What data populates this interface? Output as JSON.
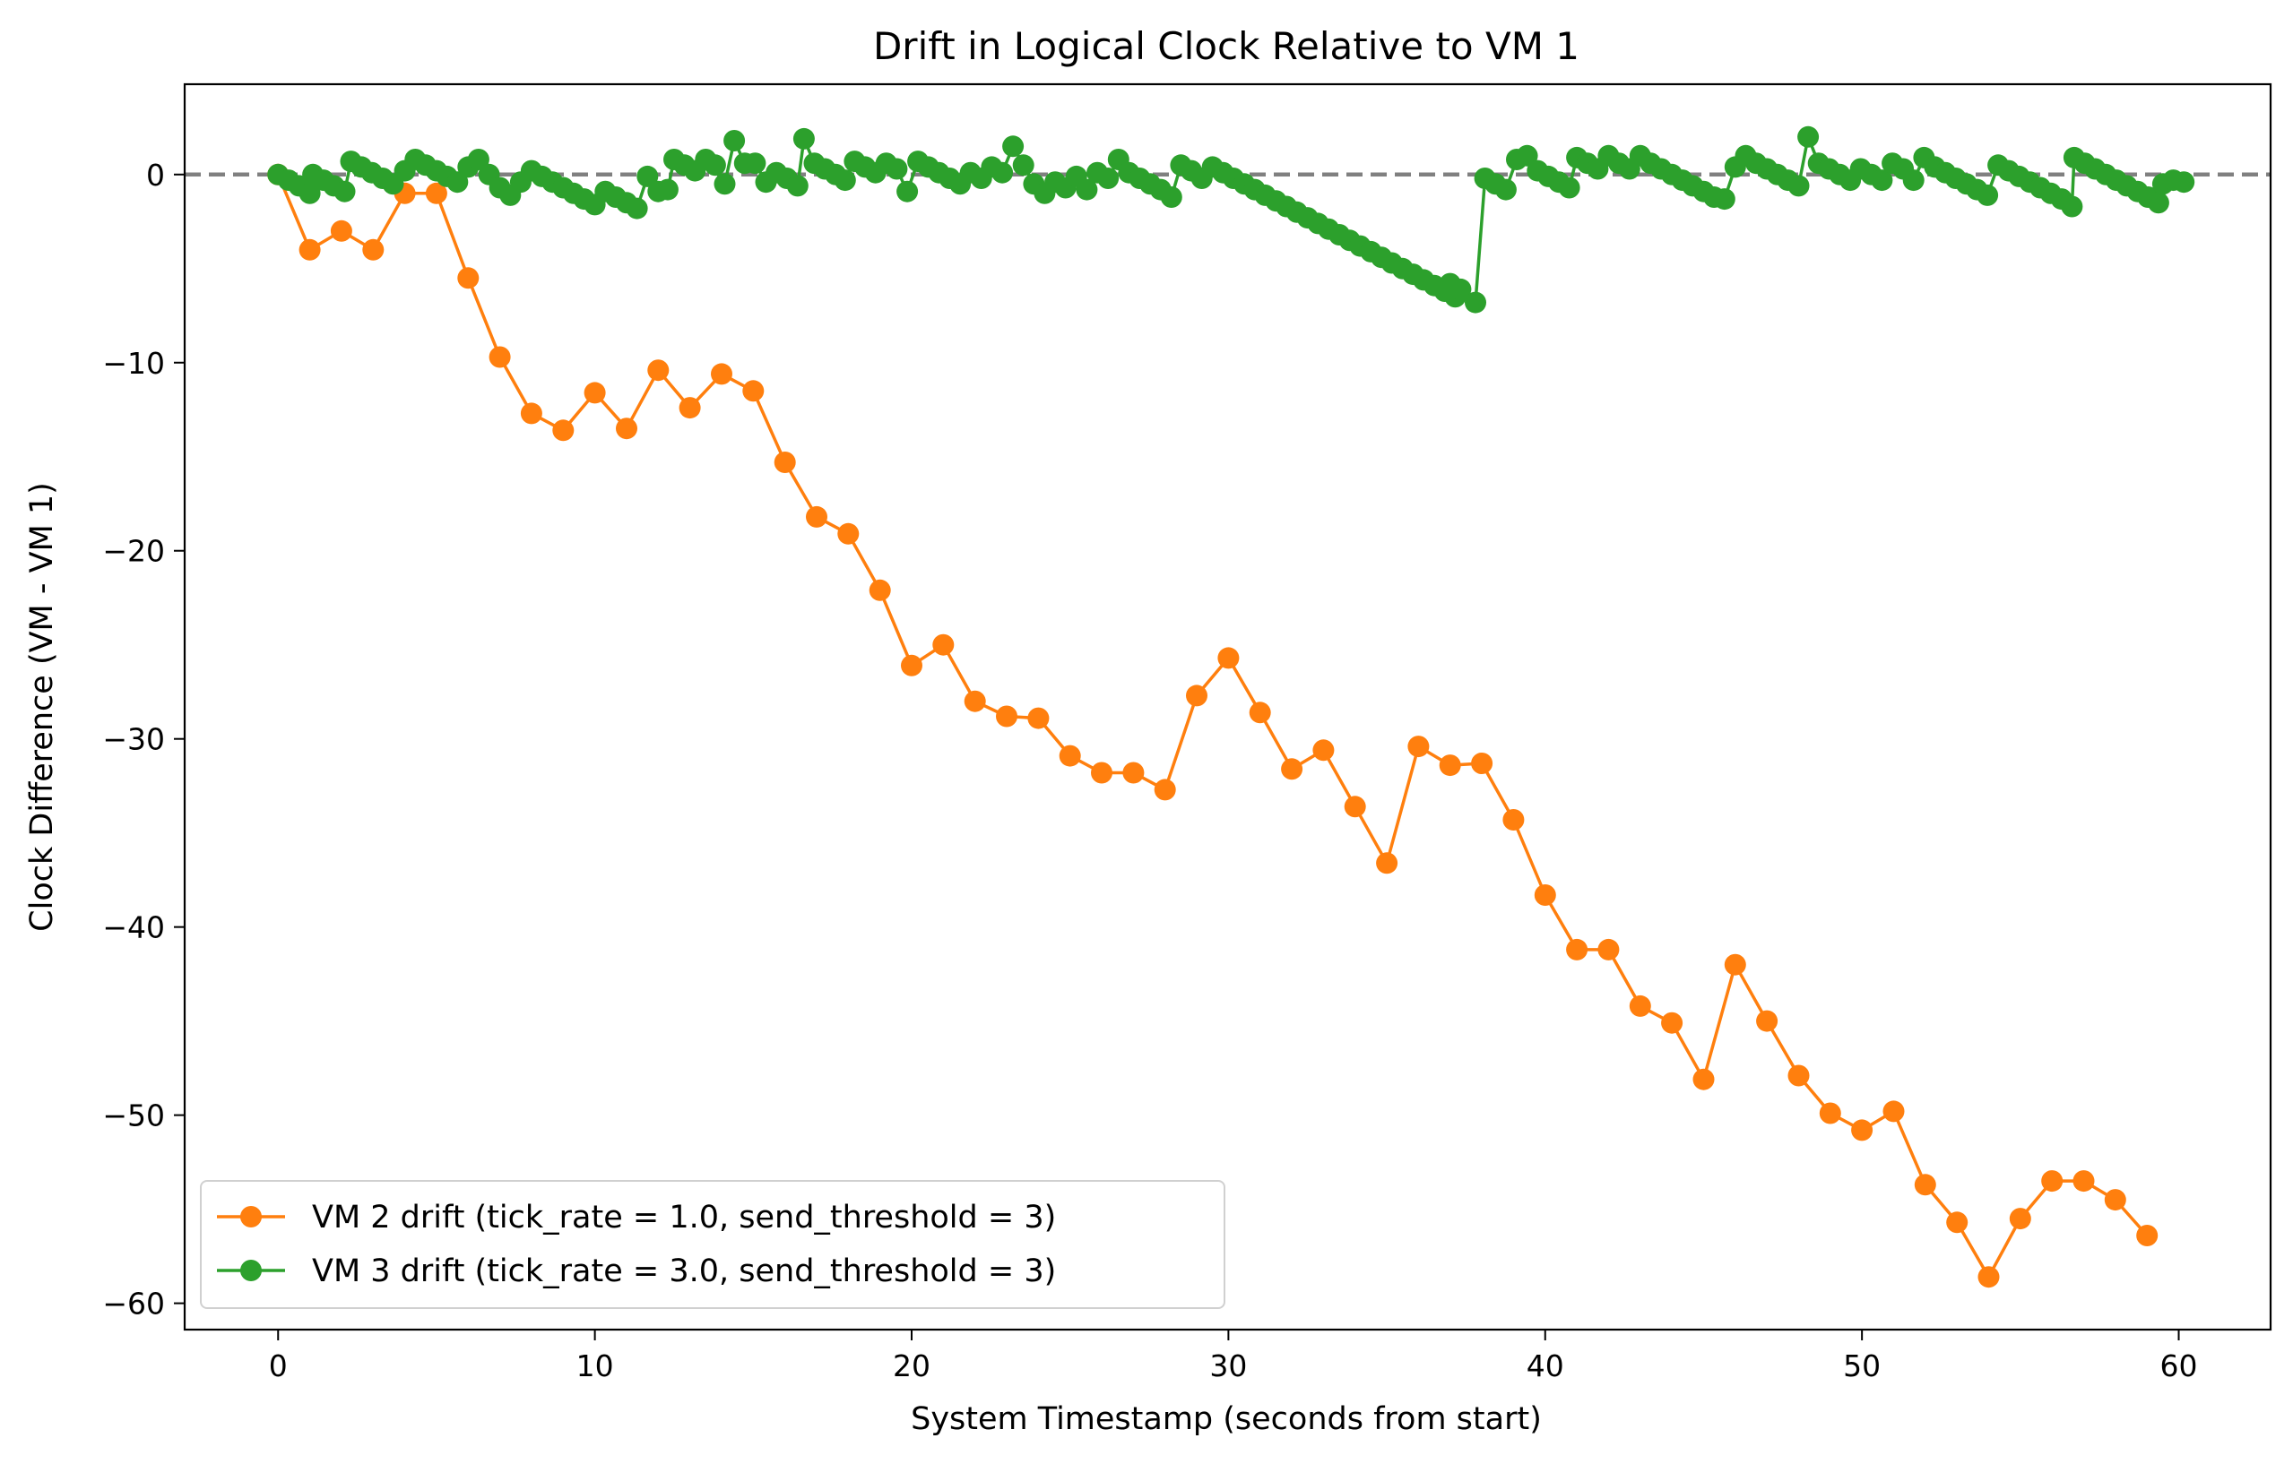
{
  "chart_data": {
    "type": "line",
    "title": "Drift in Logical Clock Relative to VM 1",
    "xlabel": "System Timestamp (seconds from start)",
    "ylabel": "Clock Difference (VM - VM 1)",
    "xlim": [
      -2.95,
      62.9
    ],
    "ylim": [
      -61.4,
      4.8
    ],
    "xticks": [
      0,
      10,
      20,
      30,
      40,
      50,
      60
    ],
    "xtick_labels": [
      "0",
      "10",
      "20",
      "30",
      "40",
      "50",
      "60"
    ],
    "yticks": [
      0,
      -10,
      -20,
      -30,
      -40,
      -50,
      -60
    ],
    "ytick_labels": [
      "0",
      "−10",
      "−20",
      "−30",
      "−40",
      "−50",
      "−60"
    ],
    "grid": false,
    "legend_position": "lower-left",
    "reference_line": {
      "y": 0,
      "style": "dashed",
      "color": "#808080"
    },
    "series": [
      {
        "name": "VM 2 drift (tick_rate = 1.0, send_threshold = 3)",
        "color": "#ff7f0e",
        "marker": "circle",
        "points": [
          [
            0,
            0
          ],
          [
            1,
            -4
          ],
          [
            2,
            -3
          ],
          [
            3,
            -4
          ],
          [
            4,
            -1
          ],
          [
            5,
            -1
          ],
          [
            6,
            -5.5
          ],
          [
            7,
            -9.7
          ],
          [
            8,
            -12.7
          ],
          [
            9,
            -13.6
          ],
          [
            10,
            -11.6
          ],
          [
            11,
            -13.5
          ],
          [
            12,
            -10.4
          ],
          [
            13,
            -12.4
          ],
          [
            14,
            -10.6
          ],
          [
            15,
            -11.5
          ],
          [
            16,
            -15.3
          ],
          [
            17,
            -18.2
          ],
          [
            18,
            -19.1
          ],
          [
            19,
            -22.1
          ],
          [
            20,
            -26.1
          ],
          [
            21,
            -25
          ],
          [
            22,
            -28
          ],
          [
            23,
            -28.8
          ],
          [
            24,
            -28.9
          ],
          [
            25,
            -30.9
          ],
          [
            26,
            -31.8
          ],
          [
            27,
            -31.8
          ],
          [
            28,
            -32.7
          ],
          [
            29,
            -27.7
          ],
          [
            30,
            -25.7
          ],
          [
            31,
            -28.6
          ],
          [
            32,
            -31.6
          ],
          [
            33,
            -30.6
          ],
          [
            34,
            -33.6
          ],
          [
            35,
            -36.6
          ],
          [
            36,
            -30.4
          ],
          [
            37,
            -31.4
          ],
          [
            38,
            -31.3
          ],
          [
            39,
            -34.3
          ],
          [
            40,
            -38.3
          ],
          [
            41,
            -41.2
          ],
          [
            42,
            -41.2
          ],
          [
            43,
            -44.2
          ],
          [
            44,
            -45.1
          ],
          [
            45,
            -48.1
          ],
          [
            46,
            -42
          ],
          [
            47,
            -45
          ],
          [
            48,
            -47.9
          ],
          [
            49,
            -49.9
          ],
          [
            50,
            -50.8
          ],
          [
            51,
            -49.8
          ],
          [
            52,
            -53.7
          ],
          [
            53,
            -55.7
          ],
          [
            54,
            -58.6
          ],
          [
            55,
            -55.5
          ],
          [
            56,
            -53.5
          ],
          [
            57,
            -53.5
          ],
          [
            58,
            -54.5
          ],
          [
            59,
            -56.4
          ]
        ]
      },
      {
        "name": "VM 3 drift (tick_rate = 3.0, send_threshold = 3)",
        "color": "#2ca02c",
        "marker": "circle",
        "points": [
          [
            0,
            0
          ],
          [
            0.33,
            -0.3
          ],
          [
            0.66,
            -0.6
          ],
          [
            1,
            -1
          ],
          [
            1.1,
            0
          ],
          [
            1.43,
            -0.3
          ],
          [
            1.76,
            -0.6
          ],
          [
            2.1,
            -0.9
          ],
          [
            2.3,
            0.7
          ],
          [
            2.63,
            0.4
          ],
          [
            2.96,
            0.1
          ],
          [
            3.3,
            -0.2
          ],
          [
            3.63,
            -0.5
          ],
          [
            4,
            0.2
          ],
          [
            4.33,
            0.8
          ],
          [
            4.66,
            0.5
          ],
          [
            5,
            0.2
          ],
          [
            5.33,
            -0.1
          ],
          [
            5.66,
            -0.4
          ],
          [
            6,
            0.4
          ],
          [
            6.33,
            0.8
          ],
          [
            6.66,
            0
          ],
          [
            7,
            -0.7
          ],
          [
            7.33,
            -1.1
          ],
          [
            7.66,
            -0.4
          ],
          [
            8,
            0.2
          ],
          [
            8.33,
            -0.1
          ],
          [
            8.66,
            -0.4
          ],
          [
            9,
            -0.7
          ],
          [
            9.33,
            -1
          ],
          [
            9.66,
            -1.3
          ],
          [
            10,
            -1.6
          ],
          [
            10.33,
            -0.9
          ],
          [
            10.66,
            -1.2
          ],
          [
            11,
            -1.5
          ],
          [
            11.33,
            -1.8
          ],
          [
            11.66,
            -0.1
          ],
          [
            12,
            -0.9
          ],
          [
            12.3,
            -0.8
          ],
          [
            12.5,
            0.8
          ],
          [
            12.83,
            0.5
          ],
          [
            13.16,
            0.2
          ],
          [
            13.5,
            0.8
          ],
          [
            13.8,
            0.5
          ],
          [
            14.1,
            -0.5
          ],
          [
            14.4,
            1.8
          ],
          [
            14.73,
            0.6
          ],
          [
            15.06,
            0.6
          ],
          [
            15.4,
            -0.4
          ],
          [
            15.73,
            0.1
          ],
          [
            16.06,
            -0.2
          ],
          [
            16.4,
            -0.6
          ],
          [
            16.6,
            1.9
          ],
          [
            16.93,
            0.6
          ],
          [
            17.26,
            0.3
          ],
          [
            17.6,
            0
          ],
          [
            17.9,
            -0.3
          ],
          [
            18.2,
            0.7
          ],
          [
            18.53,
            0.4
          ],
          [
            18.86,
            0.1
          ],
          [
            19.2,
            0.6
          ],
          [
            19.53,
            0.3
          ],
          [
            19.86,
            -0.9
          ],
          [
            20.2,
            0.7
          ],
          [
            20.53,
            0.4
          ],
          [
            20.86,
            0.1
          ],
          [
            21.2,
            -0.2
          ],
          [
            21.53,
            -0.5
          ],
          [
            21.86,
            0.1
          ],
          [
            22.2,
            -0.2
          ],
          [
            22.53,
            0.4
          ],
          [
            22.86,
            0.1
          ],
          [
            23.2,
            1.5
          ],
          [
            23.53,
            0.5
          ],
          [
            23.86,
            -0.5
          ],
          [
            24.2,
            -1
          ],
          [
            24.53,
            -0.4
          ],
          [
            24.86,
            -0.7
          ],
          [
            25.2,
            -0.1
          ],
          [
            25.53,
            -0.8
          ],
          [
            25.86,
            0.1
          ],
          [
            26.2,
            -0.2
          ],
          [
            26.53,
            0.8
          ],
          [
            26.86,
            0.1
          ],
          [
            27.2,
            -0.2
          ],
          [
            27.53,
            -0.5
          ],
          [
            27.86,
            -0.8
          ],
          [
            28.2,
            -1.2
          ],
          [
            28.5,
            0.5
          ],
          [
            28.83,
            0.2
          ],
          [
            29.16,
            -0.2
          ],
          [
            29.5,
            0.4
          ],
          [
            29.83,
            0.1
          ],
          [
            30.16,
            -0.2
          ],
          [
            30.5,
            -0.5
          ],
          [
            30.83,
            -0.8
          ],
          [
            31.16,
            -1.1
          ],
          [
            31.5,
            -1.4
          ],
          [
            31.83,
            -1.7
          ],
          [
            32.16,
            -2
          ],
          [
            32.5,
            -2.3
          ],
          [
            32.83,
            -2.6
          ],
          [
            33.16,
            -2.9
          ],
          [
            33.5,
            -3.2
          ],
          [
            33.83,
            -3.5
          ],
          [
            34.16,
            -3.8
          ],
          [
            34.5,
            -4.1
          ],
          [
            34.83,
            -4.4
          ],
          [
            35.16,
            -4.7
          ],
          [
            35.5,
            -5
          ],
          [
            35.83,
            -5.3
          ],
          [
            36.16,
            -5.6
          ],
          [
            36.5,
            -5.9
          ],
          [
            36.83,
            -6.2
          ],
          [
            37.16,
            -6.5
          ],
          [
            37,
            -5.8
          ],
          [
            37.33,
            -6.1
          ],
          [
            37.8,
            -6.8
          ],
          [
            38.1,
            -0.2
          ],
          [
            38.43,
            -0.5
          ],
          [
            38.76,
            -0.8
          ],
          [
            39.1,
            0.8
          ],
          [
            39.43,
            1
          ],
          [
            39.76,
            0.2
          ],
          [
            40.1,
            -0.1
          ],
          [
            40.43,
            -0.4
          ],
          [
            40.76,
            -0.7
          ],
          [
            41,
            0.9
          ],
          [
            41.33,
            0.6
          ],
          [
            41.66,
            0.3
          ],
          [
            42,
            1
          ],
          [
            42.33,
            0.6
          ],
          [
            42.66,
            0.3
          ],
          [
            43,
            1
          ],
          [
            43.33,
            0.6
          ],
          [
            43.66,
            0.3
          ],
          [
            44,
            0
          ],
          [
            44.33,
            -0.3
          ],
          [
            44.66,
            -0.6
          ],
          [
            45,
            -0.9
          ],
          [
            45.33,
            -1.2
          ],
          [
            45.66,
            -1.3
          ],
          [
            46,
            0.4
          ],
          [
            46.33,
            1
          ],
          [
            46.66,
            0.6
          ],
          [
            47,
            0.3
          ],
          [
            47.33,
            0
          ],
          [
            47.66,
            -0.3
          ],
          [
            48,
            -0.6
          ],
          [
            48.3,
            2
          ],
          [
            48.63,
            0.6
          ],
          [
            48.96,
            0.3
          ],
          [
            49.3,
            0
          ],
          [
            49.63,
            -0.3
          ],
          [
            49.96,
            0.3
          ],
          [
            50.3,
            0
          ],
          [
            50.63,
            -0.3
          ],
          [
            50.96,
            0.6
          ],
          [
            51.3,
            0.3
          ],
          [
            51.63,
            -0.3
          ],
          [
            51.96,
            0.9
          ],
          [
            52.3,
            0.4
          ],
          [
            52.63,
            0.1
          ],
          [
            52.96,
            -0.2
          ],
          [
            53.3,
            -0.5
          ],
          [
            53.63,
            -0.8
          ],
          [
            53.96,
            -1.1
          ],
          [
            54.3,
            0.5
          ],
          [
            54.63,
            0.2
          ],
          [
            54.96,
            -0.1
          ],
          [
            55.3,
            -0.4
          ],
          [
            55.63,
            -0.7
          ],
          [
            55.96,
            -1
          ],
          [
            56.3,
            -1.3
          ],
          [
            56.63,
            -1.7
          ],
          [
            56.7,
            0.9
          ],
          [
            57.03,
            0.6
          ],
          [
            57.36,
            0.3
          ],
          [
            57.7,
            0
          ],
          [
            58.03,
            -0.3
          ],
          [
            58.36,
            -0.6
          ],
          [
            58.7,
            -0.9
          ],
          [
            59.03,
            -1.2
          ],
          [
            59.36,
            -1.5
          ],
          [
            59.5,
            -0.5
          ],
          [
            59.83,
            -0.3
          ],
          [
            60.16,
            -0.4
          ]
        ]
      }
    ]
  }
}
